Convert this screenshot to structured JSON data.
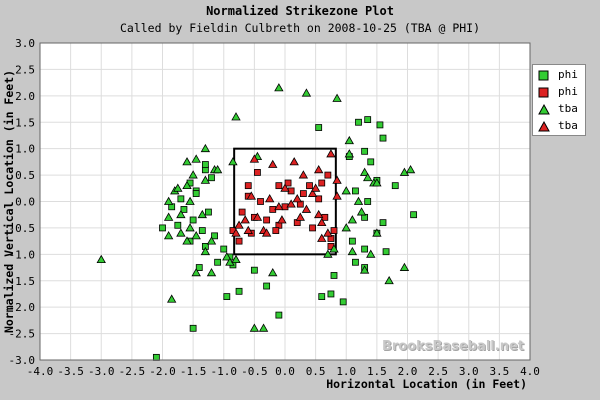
{
  "chart_data": {
    "type": "scatter",
    "title": "Normalized Strikezone Plot",
    "subtitle": "Called by Fieldin Culbreth on 2008-10-25 (TBA @ PHI)",
    "xlabel": "Horizontal Location (in Feet)",
    "ylabel": "Normalized Vertical Location (in Feet)",
    "xlim": [
      -4.0,
      4.0
    ],
    "ylim": [
      -3.0,
      3.0
    ],
    "x_ticks": [
      "-4.0",
      "-3.5",
      "-3.0",
      "-2.5",
      "-2.0",
      "-1.5",
      "-1.0",
      "-0.5",
      "0.0",
      "0.5",
      "1.0",
      "1.5",
      "2.0",
      "2.5",
      "3.0",
      "3.5",
      "4.0"
    ],
    "y_ticks": [
      "3.0",
      "2.5",
      "2.0",
      "1.5",
      "1.0",
      "0.5",
      "0.0",
      "-0.5",
      "-1.0",
      "-1.5",
      "-2.0",
      "-2.5",
      "-3.0"
    ],
    "grid": true,
    "legend_position": "top-right",
    "strikezone": {
      "x": [
        -0.83,
        0.83
      ],
      "y": [
        -1.0,
        1.0
      ]
    },
    "series": [
      {
        "name": "phi",
        "marker": "square",
        "color": "#33cc33",
        "points": [
          [
            1.2,
            1.5
          ],
          [
            1.35,
            1.55
          ],
          [
            1.55,
            1.45
          ],
          [
            1.6,
            1.2
          ],
          [
            1.3,
            0.95
          ],
          [
            1.05,
            0.85
          ],
          [
            1.4,
            0.75
          ],
          [
            1.5,
            0.4
          ],
          [
            1.15,
            0.2
          ],
          [
            1.35,
            0.0
          ],
          [
            1.8,
            0.3
          ],
          [
            1.3,
            -0.3
          ],
          [
            1.6,
            -0.4
          ],
          [
            1.5,
            -0.6
          ],
          [
            1.1,
            -0.75
          ],
          [
            1.3,
            -0.9
          ],
          [
            1.15,
            -1.15
          ],
          [
            1.65,
            -0.95
          ],
          [
            1.3,
            -1.25
          ],
          [
            0.8,
            -1.4
          ],
          [
            0.75,
            -1.75
          ],
          [
            0.6,
            -1.8
          ],
          [
            0.95,
            -1.9
          ],
          [
            2.1,
            -0.25
          ],
          [
            0.55,
            1.4
          ],
          [
            -1.3,
            0.6
          ],
          [
            -1.2,
            0.45
          ],
          [
            -1.55,
            0.35
          ],
          [
            -1.45,
            0.2
          ],
          [
            -1.7,
            0.05
          ],
          [
            -1.85,
            -0.1
          ],
          [
            -1.65,
            -0.15
          ],
          [
            -1.25,
            -0.2
          ],
          [
            -1.5,
            -0.35
          ],
          [
            -1.75,
            -0.45
          ],
          [
            -2.0,
            -0.5
          ],
          [
            -1.35,
            -0.55
          ],
          [
            -1.15,
            -0.65
          ],
          [
            -1.55,
            -0.75
          ],
          [
            -1.3,
            -0.85
          ],
          [
            -1.0,
            -0.9
          ],
          [
            -0.9,
            -1.05
          ],
          [
            -1.1,
            -1.15
          ],
          [
            -1.4,
            -1.25
          ],
          [
            -0.85,
            -1.2
          ],
          [
            -0.75,
            -1.7
          ],
          [
            -0.95,
            -1.8
          ],
          [
            -0.5,
            -1.3
          ],
          [
            -0.3,
            -1.6
          ],
          [
            -0.1,
            -2.15
          ],
          [
            -1.5,
            -2.4
          ],
          [
            -2.1,
            -2.95
          ],
          [
            -1.3,
            0.7
          ],
          [
            -1.45,
            0.15
          ]
        ]
      },
      {
        "name": "phi",
        "marker": "square",
        "color": "#dd2222",
        "points": [
          [
            -0.1,
            0.3
          ],
          [
            0.1,
            0.2
          ],
          [
            0.3,
            0.15
          ],
          [
            0.4,
            0.3
          ],
          [
            0.6,
            0.35
          ],
          [
            0.7,
            0.5
          ],
          [
            0.55,
            0.05
          ],
          [
            0.25,
            -0.05
          ],
          [
            0.0,
            -0.1
          ],
          [
            -0.2,
            -0.15
          ],
          [
            -0.4,
            0.0
          ],
          [
            -0.6,
            0.1
          ],
          [
            -0.7,
            -0.2
          ],
          [
            -0.5,
            -0.3
          ],
          [
            -0.3,
            -0.35
          ],
          [
            -0.1,
            -0.45
          ],
          [
            0.2,
            -0.4
          ],
          [
            0.45,
            -0.5
          ],
          [
            0.65,
            -0.3
          ],
          [
            0.75,
            -0.7
          ],
          [
            0.75,
            -0.85
          ],
          [
            -0.55,
            -0.6
          ],
          [
            -0.75,
            -0.75
          ],
          [
            -0.85,
            -0.55
          ],
          [
            -0.45,
            0.55
          ],
          [
            -0.6,
            0.3
          ],
          [
            0.05,
            0.35
          ],
          [
            -0.15,
            -0.55
          ],
          [
            0.8,
            -0.55
          ]
        ]
      },
      {
        "name": "tba",
        "marker": "triangle",
        "color": "#33cc33",
        "points": [
          [
            -0.1,
            2.15
          ],
          [
            0.35,
            2.05
          ],
          [
            0.85,
            1.95
          ],
          [
            -0.8,
            1.6
          ],
          [
            1.05,
            1.15
          ],
          [
            -1.3,
            1.0
          ],
          [
            -0.45,
            0.85
          ],
          [
            -1.45,
            0.8
          ],
          [
            -1.6,
            0.75
          ],
          [
            -1.15,
            0.6
          ],
          [
            -0.85,
            0.75
          ],
          [
            -1.5,
            0.5
          ],
          [
            -1.3,
            0.4
          ],
          [
            -1.6,
            0.3
          ],
          [
            -1.8,
            0.2
          ],
          [
            -1.9,
            0.0
          ],
          [
            -1.55,
            0.0
          ],
          [
            -1.35,
            -0.25
          ],
          [
            -1.7,
            -0.25
          ],
          [
            -1.9,
            -0.3
          ],
          [
            -1.55,
            -0.5
          ],
          [
            -1.7,
            -0.6
          ],
          [
            -1.45,
            -0.65
          ],
          [
            -1.9,
            -0.65
          ],
          [
            -1.2,
            -0.75
          ],
          [
            -1.6,
            -0.75
          ],
          [
            -1.3,
            -0.95
          ],
          [
            -0.95,
            -1.05
          ],
          [
            -1.2,
            -1.35
          ],
          [
            -1.45,
            -1.35
          ],
          [
            -0.9,
            -1.15
          ],
          [
            -0.2,
            -1.35
          ],
          [
            -1.85,
            -1.85
          ],
          [
            -0.5,
            -2.4
          ],
          [
            -0.35,
            -2.4
          ],
          [
            -3.0,
            -1.1
          ],
          [
            1.05,
            0.9
          ],
          [
            1.3,
            0.55
          ],
          [
            1.45,
            0.35
          ],
          [
            1.35,
            0.45
          ],
          [
            1.5,
            0.35
          ],
          [
            1.95,
            0.55
          ],
          [
            2.05,
            0.6
          ],
          [
            1.0,
            0.2
          ],
          [
            1.2,
            0.0
          ],
          [
            1.25,
            -0.2
          ],
          [
            1.1,
            -0.35
          ],
          [
            1.5,
            -0.6
          ],
          [
            1.1,
            -0.95
          ],
          [
            1.4,
            -1.0
          ],
          [
            1.95,
            -1.25
          ],
          [
            1.7,
            -1.5
          ],
          [
            1.3,
            -1.3
          ],
          [
            0.7,
            -1.0
          ],
          [
            0.8,
            -0.9
          ],
          [
            -0.8,
            -1.1
          ],
          [
            -1.1,
            0.6
          ],
          [
            1.0,
            -0.5
          ],
          [
            -1.75,
            0.25
          ]
        ]
      },
      {
        "name": "tba",
        "marker": "triangle",
        "color": "#dd2222",
        "points": [
          [
            -0.5,
            0.8
          ],
          [
            0.15,
            0.75
          ],
          [
            0.75,
            0.9
          ],
          [
            -0.2,
            0.7
          ],
          [
            0.55,
            0.6
          ],
          [
            0.85,
            0.4
          ],
          [
            0.3,
            0.5
          ],
          [
            0.45,
            0.15
          ],
          [
            0.2,
            0.05
          ],
          [
            0.0,
            0.25
          ],
          [
            -0.25,
            0.05
          ],
          [
            -0.45,
            -0.3
          ],
          [
            -0.6,
            -0.55
          ],
          [
            -0.35,
            -0.55
          ],
          [
            -0.05,
            -0.35
          ],
          [
            0.25,
            -0.3
          ],
          [
            0.6,
            -0.4
          ],
          [
            0.6,
            -0.7
          ],
          [
            0.7,
            -0.6
          ],
          [
            -0.75,
            -0.45
          ],
          [
            -0.8,
            -0.6
          ],
          [
            -0.65,
            -0.35
          ],
          [
            0.1,
            -0.05
          ],
          [
            0.35,
            -0.15
          ],
          [
            0.5,
            0.25
          ],
          [
            -0.3,
            -0.6
          ],
          [
            -0.1,
            -0.1
          ],
          [
            -0.55,
            0.1
          ],
          [
            0.55,
            -0.25
          ],
          [
            0.85,
            0.1
          ]
        ]
      }
    ]
  },
  "watermark": "BrooksBaseball.net"
}
